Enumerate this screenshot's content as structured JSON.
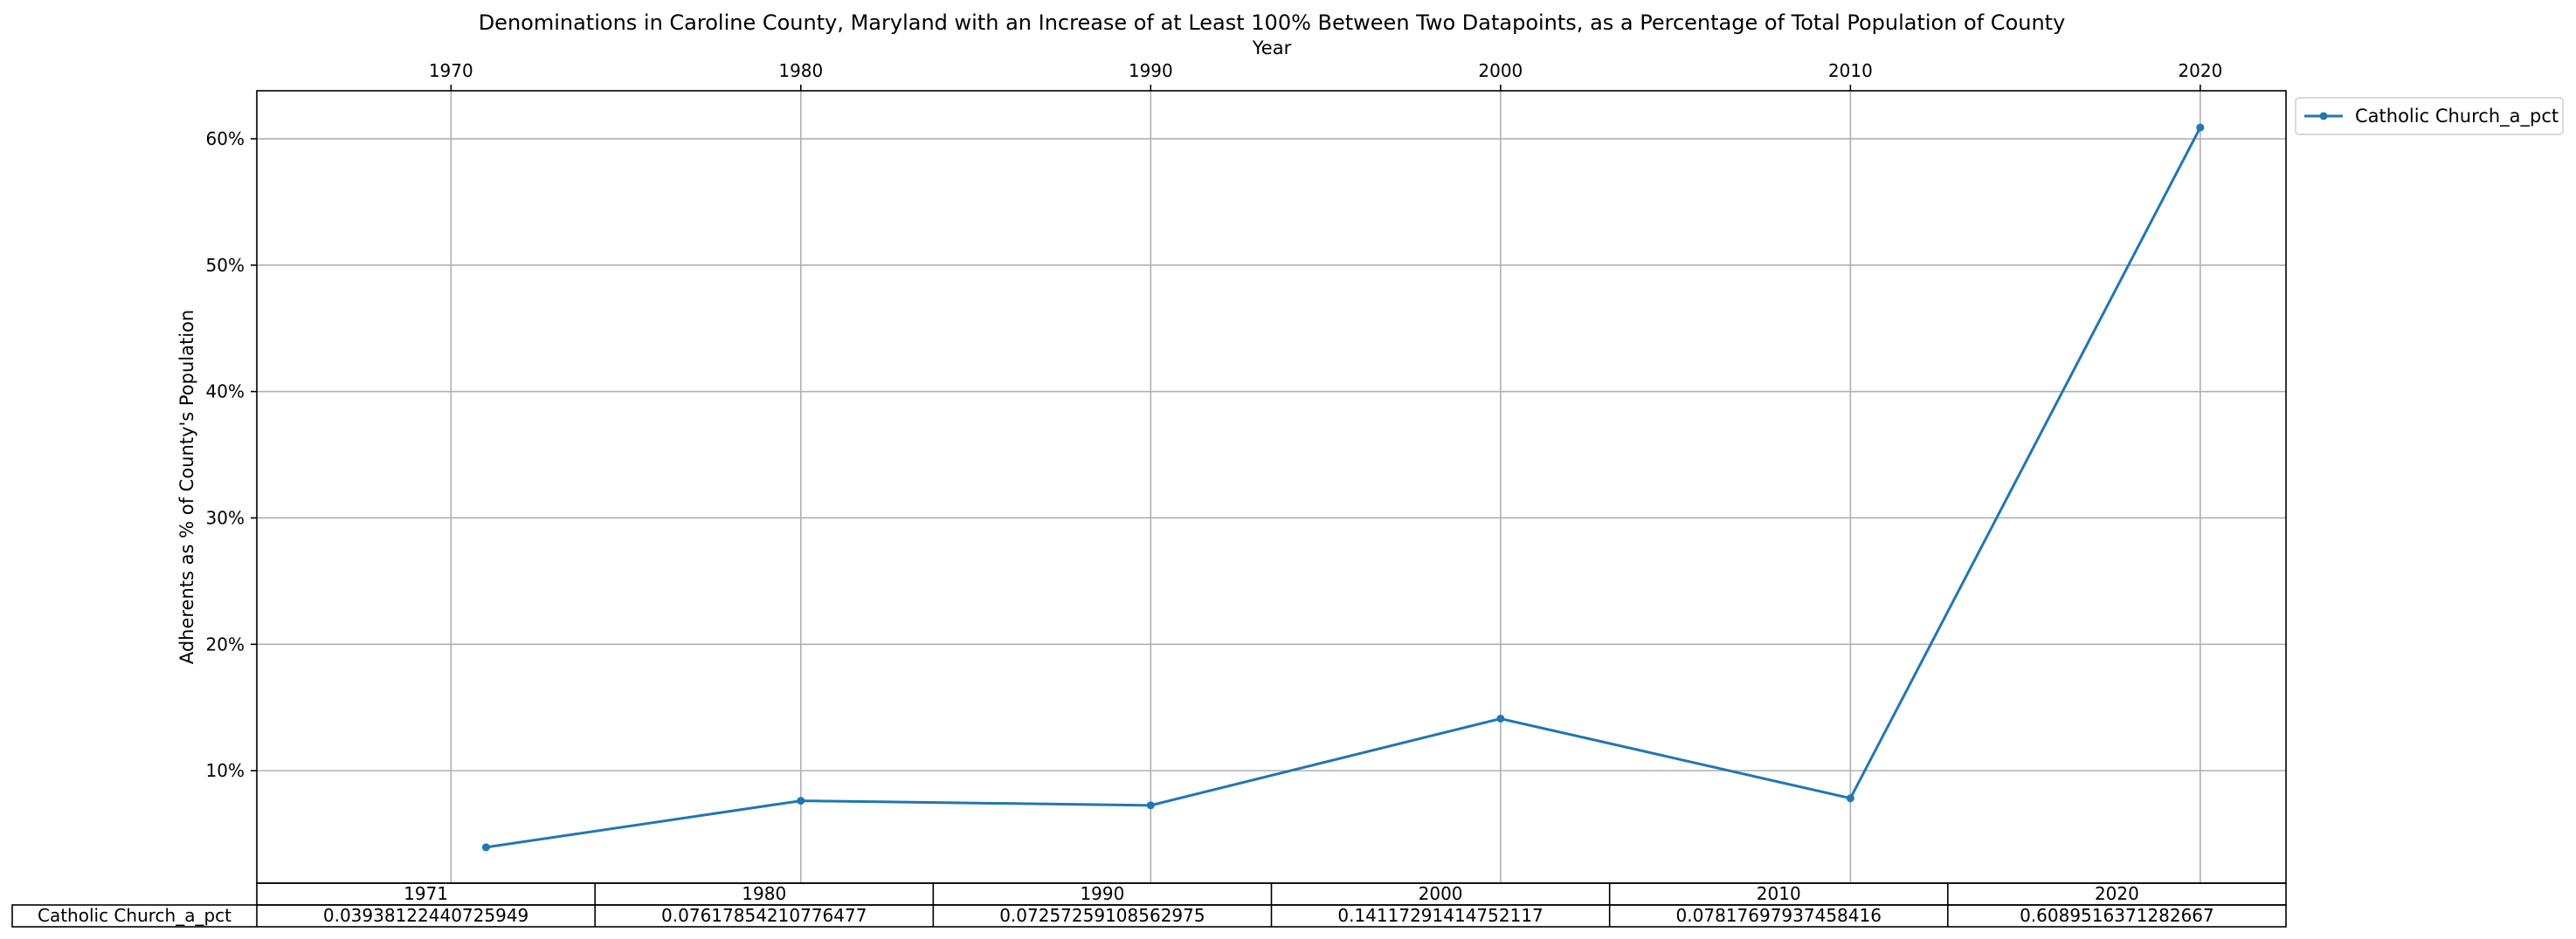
{
  "chart_data": {
    "type": "line",
    "title": "Denominations in Caroline County, Maryland with an Increase of at Least 100% Between Two Datapoints, as a Percentage of Total Population of County",
    "xlabel": "Year",
    "ylabel": "Adherents as % of County's Population",
    "x": [
      1971,
      1980,
      1990,
      2000,
      2010,
      2020
    ],
    "x_ticks": [
      "1970",
      "1980",
      "1990",
      "2000",
      "2010",
      "2020"
    ],
    "xlim": [
      1964.45,
      2022.45
    ],
    "y_ticks": [
      "10%",
      "20%",
      "30%",
      "40%",
      "50%",
      "60%"
    ],
    "ylim": [
      0.011,
      0.638
    ],
    "grid": true,
    "legend_position": "outside-top-right",
    "series": [
      {
        "name": "Catholic Church_a_pct",
        "color": "#1f77b4",
        "values": [
          0.03938122440725949,
          0.07617854210776477,
          0.07257259108562975,
          0.14117291414752117,
          0.07817697937458416,
          0.6089516371282667
        ]
      }
    ],
    "table": {
      "columns": [
        "1971",
        "1980",
        "1990",
        "2000",
        "2010",
        "2020"
      ],
      "rows": [
        {
          "label": "Catholic Church_a_pct",
          "cells": [
            "0.03938122440725949",
            "0.07617854210776477",
            "0.07257259108562975",
            "0.14117291414752117",
            "0.07817697937458416",
            "0.6089516371282667"
          ]
        }
      ]
    }
  }
}
